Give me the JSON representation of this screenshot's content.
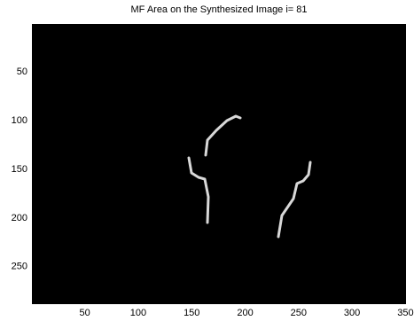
{
  "chart_data": {
    "type": "image",
    "title": "MF Area on the Synthesized Image i=  81",
    "xlim": [
      0.5,
      350.5
    ],
    "ylim": [
      0.5,
      288.5
    ],
    "y_reversed": true,
    "xticks": [
      50,
      100,
      150,
      200,
      250,
      300,
      350
    ],
    "yticks": [
      50,
      100,
      150,
      200,
      250
    ],
    "background": "#000000"
  }
}
